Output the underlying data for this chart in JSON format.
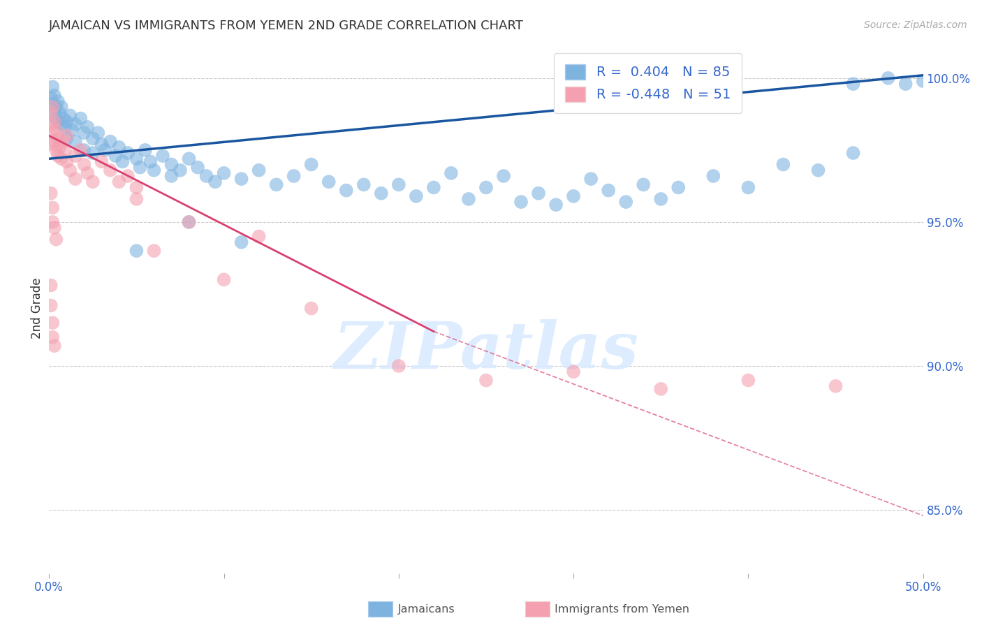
{
  "title": "JAMAICAN VS IMMIGRANTS FROM YEMEN 2ND GRADE CORRELATION CHART",
  "source": "Source: ZipAtlas.com",
  "ylabel": "2nd Grade",
  "ylabel_right_labels": [
    "100.0%",
    "95.0%",
    "90.0%",
    "85.0%"
  ],
  "ylabel_right_values": [
    1.0,
    0.95,
    0.9,
    0.85
  ],
  "legend_blue_r": "0.404",
  "legend_blue_n": "85",
  "legend_pink_r": "-0.448",
  "legend_pink_n": "51",
  "blue_color": "#7EB3E0",
  "pink_color": "#F4A0B0",
  "line_blue_color": "#1A56A0",
  "line_pink_color": "#D94070",
  "watermark": "ZIPatlas",
  "blue_dots": [
    [
      0.001,
      0.993
    ],
    [
      0.002,
      0.997
    ],
    [
      0.002,
      0.991
    ],
    [
      0.003,
      0.994
    ],
    [
      0.003,
      0.988
    ],
    [
      0.004,
      0.99
    ],
    [
      0.004,
      0.986
    ],
    [
      0.005,
      0.992
    ],
    [
      0.005,
      0.985
    ],
    [
      0.006,
      0.988
    ],
    [
      0.007,
      0.99
    ],
    [
      0.007,
      0.984
    ],
    [
      0.008,
      0.986
    ],
    [
      0.009,
      0.983
    ],
    [
      0.01,
      0.985
    ],
    [
      0.01,
      0.979
    ],
    [
      0.012,
      0.987
    ],
    [
      0.013,
      0.982
    ],
    [
      0.015,
      0.984
    ],
    [
      0.015,
      0.978
    ],
    [
      0.018,
      0.986
    ],
    [
      0.02,
      0.981
    ],
    [
      0.02,
      0.975
    ],
    [
      0.022,
      0.983
    ],
    [
      0.025,
      0.979
    ],
    [
      0.025,
      0.974
    ],
    [
      0.028,
      0.981
    ],
    [
      0.03,
      0.977
    ],
    [
      0.032,
      0.975
    ],
    [
      0.035,
      0.978
    ],
    [
      0.038,
      0.973
    ],
    [
      0.04,
      0.976
    ],
    [
      0.042,
      0.971
    ],
    [
      0.045,
      0.974
    ],
    [
      0.05,
      0.972
    ],
    [
      0.052,
      0.969
    ],
    [
      0.055,
      0.975
    ],
    [
      0.058,
      0.971
    ],
    [
      0.06,
      0.968
    ],
    [
      0.065,
      0.973
    ],
    [
      0.07,
      0.97
    ],
    [
      0.07,
      0.966
    ],
    [
      0.075,
      0.968
    ],
    [
      0.08,
      0.972
    ],
    [
      0.085,
      0.969
    ],
    [
      0.09,
      0.966
    ],
    [
      0.095,
      0.964
    ],
    [
      0.1,
      0.967
    ],
    [
      0.11,
      0.965
    ],
    [
      0.12,
      0.968
    ],
    [
      0.13,
      0.963
    ],
    [
      0.14,
      0.966
    ],
    [
      0.15,
      0.97
    ],
    [
      0.16,
      0.964
    ],
    [
      0.17,
      0.961
    ],
    [
      0.18,
      0.963
    ],
    [
      0.19,
      0.96
    ],
    [
      0.2,
      0.963
    ],
    [
      0.21,
      0.959
    ],
    [
      0.22,
      0.962
    ],
    [
      0.23,
      0.967
    ],
    [
      0.24,
      0.958
    ],
    [
      0.25,
      0.962
    ],
    [
      0.26,
      0.966
    ],
    [
      0.27,
      0.957
    ],
    [
      0.28,
      0.96
    ],
    [
      0.29,
      0.956
    ],
    [
      0.3,
      0.959
    ],
    [
      0.31,
      0.965
    ],
    [
      0.32,
      0.961
    ],
    [
      0.33,
      0.957
    ],
    [
      0.34,
      0.963
    ],
    [
      0.35,
      0.958
    ],
    [
      0.36,
      0.962
    ],
    [
      0.38,
      0.966
    ],
    [
      0.4,
      0.962
    ],
    [
      0.42,
      0.97
    ],
    [
      0.44,
      0.968
    ],
    [
      0.46,
      0.974
    ],
    [
      0.46,
      0.998
    ],
    [
      0.48,
      1.0
    ],
    [
      0.49,
      0.998
    ],
    [
      0.5,
      0.999
    ],
    [
      0.05,
      0.94
    ],
    [
      0.08,
      0.95
    ],
    [
      0.11,
      0.943
    ]
  ],
  "pink_dots": [
    [
      0.001,
      0.988
    ],
    [
      0.001,
      0.984
    ],
    [
      0.002,
      0.99
    ],
    [
      0.002,
      0.981
    ],
    [
      0.002,
      0.977
    ],
    [
      0.003,
      0.985
    ],
    [
      0.003,
      0.978
    ],
    [
      0.004,
      0.982
    ],
    [
      0.004,
      0.975
    ],
    [
      0.005,
      0.979
    ],
    [
      0.005,
      0.973
    ],
    [
      0.006,
      0.976
    ],
    [
      0.007,
      0.972
    ],
    [
      0.008,
      0.978
    ],
    [
      0.009,
      0.975
    ],
    [
      0.01,
      0.971
    ],
    [
      0.01,
      0.98
    ],
    [
      0.012,
      0.968
    ],
    [
      0.015,
      0.965
    ],
    [
      0.015,
      0.973
    ],
    [
      0.018,
      0.975
    ],
    [
      0.02,
      0.97
    ],
    [
      0.022,
      0.967
    ],
    [
      0.025,
      0.964
    ],
    [
      0.03,
      0.971
    ],
    [
      0.035,
      0.968
    ],
    [
      0.04,
      0.964
    ],
    [
      0.045,
      0.966
    ],
    [
      0.05,
      0.962
    ],
    [
      0.001,
      0.96
    ],
    [
      0.002,
      0.955
    ],
    [
      0.002,
      0.95
    ],
    [
      0.003,
      0.948
    ],
    [
      0.004,
      0.944
    ],
    [
      0.001,
      0.928
    ],
    [
      0.001,
      0.921
    ],
    [
      0.002,
      0.915
    ],
    [
      0.002,
      0.91
    ],
    [
      0.003,
      0.907
    ],
    [
      0.05,
      0.958
    ],
    [
      0.06,
      0.94
    ],
    [
      0.08,
      0.95
    ],
    [
      0.1,
      0.93
    ],
    [
      0.12,
      0.945
    ],
    [
      0.15,
      0.92
    ],
    [
      0.2,
      0.9
    ],
    [
      0.25,
      0.895
    ],
    [
      0.3,
      0.898
    ],
    [
      0.35,
      0.892
    ],
    [
      0.4,
      0.895
    ],
    [
      0.45,
      0.893
    ]
  ],
  "xlim": [
    0.0,
    0.5
  ],
  "ylim": [
    0.828,
    1.012
  ],
  "blue_trend": [
    0.0,
    0.972,
    0.5,
    1.001
  ],
  "pink_trend_solid": [
    0.0,
    0.98,
    0.22,
    0.912
  ],
  "pink_trend_dashed": [
    0.22,
    0.912,
    0.5,
    0.848
  ],
  "background_color": "#FFFFFF",
  "grid_color": "#CCCCCC",
  "xtick_positions": [
    0.0,
    0.1,
    0.2,
    0.3,
    0.4,
    0.5
  ],
  "xtick_labels": [
    "0.0%",
    "",
    "",
    "",
    "",
    "50.0%"
  ]
}
